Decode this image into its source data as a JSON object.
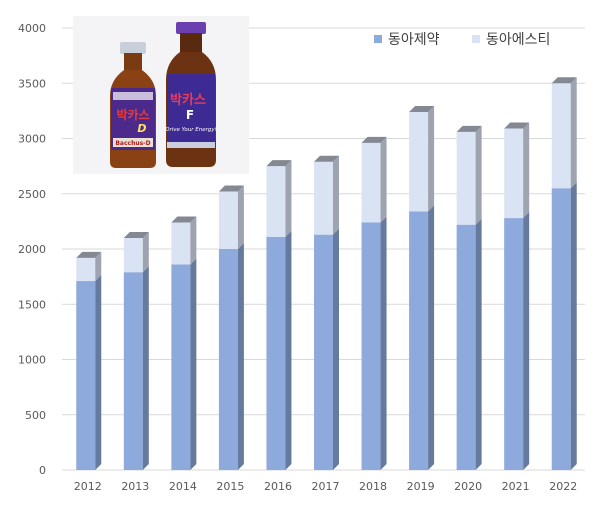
{
  "chart_data": {
    "type": "bar",
    "stacked": true,
    "categories": [
      "2012",
      "2013",
      "2014",
      "2015",
      "2016",
      "2017",
      "2018",
      "2019",
      "2020",
      "2021",
      "2022"
    ],
    "series": [
      {
        "name": "동아제약",
        "color": "#8EA9DB",
        "values": [
          1710,
          1790,
          1860,
          2000,
          2110,
          2130,
          2240,
          2340,
          2220,
          2280,
          2550
        ]
      },
      {
        "name": "동아에스티",
        "color": "#DAE3F3",
        "values": [
          210,
          310,
          380,
          520,
          640,
          660,
          720,
          900,
          840,
          810,
          950
        ]
      }
    ],
    "yticks": [
      0,
      500,
      1000,
      1500,
      2000,
      2500,
      3000,
      3500,
      4000
    ],
    "ylim": [
      0,
      4000
    ],
    "legend_position": "top-right",
    "grid": true
  },
  "photo": {
    "bottle_left_label": "박카스",
    "bottle_left_sub": "D",
    "bottle_left_brand": "Bacchus-D",
    "bottle_right_label": "박카스",
    "bottle_right_sub": "F",
    "bottle_right_slogan": "Drive Your Energy!"
  }
}
